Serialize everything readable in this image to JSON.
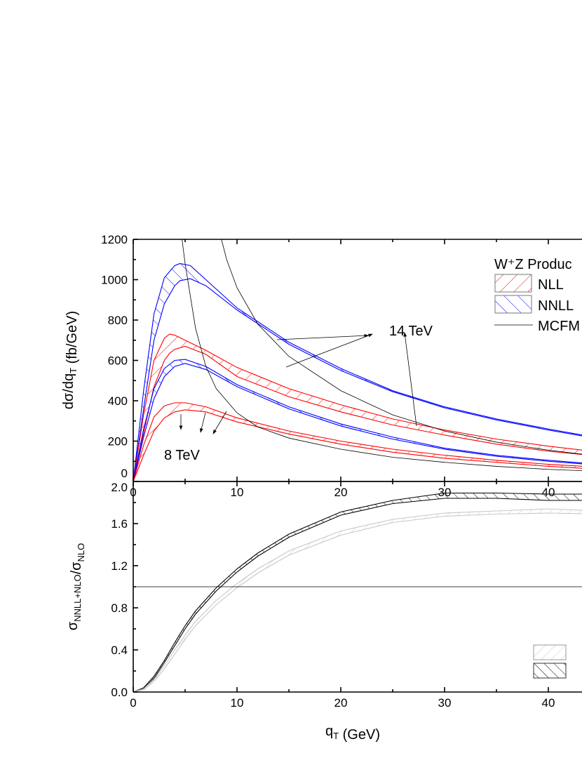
{
  "chart_data": [
    {
      "type": "line",
      "ylabel": "dσ/dq_T (fb/GeV)",
      "xlim": [
        0,
        45
      ],
      "ylim": [
        0,
        1200
      ],
      "xticks": [
        "0",
        "10",
        "20",
        "30",
        "40"
      ],
      "yticks": [
        "0",
        "200",
        "400",
        "600",
        "800",
        "1000",
        "1200"
      ],
      "legend": {
        "title": "W⁺Z Produc",
        "entries": [
          "NLL",
          "NNLL",
          "MCFM"
        ],
        "placement": "top-right"
      },
      "annotations": [
        "14 TeV",
        "8 TeV"
      ],
      "bands": [
        {
          "name": "NNLL",
          "energy": "14 TeV",
          "color": "#0000ff",
          "x": [
            0,
            1,
            2,
            3,
            4,
            4.5,
            5.5,
            7,
            10,
            15,
            20,
            25,
            30,
            35,
            40,
            45
          ],
          "upper": [
            0,
            450,
            830,
            1010,
            1070,
            1080,
            1070,
            1000,
            860,
            690,
            560,
            450,
            370,
            310,
            260,
            215
          ],
          "lower": [
            0,
            360,
            700,
            880,
            970,
            995,
            1005,
            970,
            850,
            680,
            550,
            445,
            365,
            305,
            255,
            210
          ]
        },
        {
          "name": "NLL",
          "energy": "14 TeV",
          "color": "#ff0000",
          "x": [
            0,
            1,
            2,
            3,
            3.5,
            4,
            5,
            7,
            10,
            15,
            20,
            25,
            30,
            35,
            40,
            45
          ],
          "upper": [
            0,
            330,
            600,
            710,
            730,
            725,
            700,
            650,
            565,
            460,
            380,
            310,
            255,
            210,
            175,
            145
          ],
          "lower": [
            0,
            240,
            470,
            600,
            635,
            655,
            670,
            630,
            520,
            420,
            345,
            280,
            230,
            185,
            150,
            125
          ]
        },
        {
          "name": "NNLL",
          "energy": "8 TeV",
          "color": "#0000ff",
          "x": [
            0,
            1,
            2,
            3,
            4,
            5,
            7,
            10,
            15,
            20,
            25,
            30,
            35,
            40,
            45
          ],
          "upper": [
            0,
            260,
            460,
            560,
            600,
            605,
            570,
            480,
            370,
            285,
            220,
            165,
            130,
            105,
            85
          ],
          "lower": [
            0,
            220,
            410,
            520,
            570,
            585,
            555,
            470,
            360,
            275,
            210,
            160,
            125,
            100,
            80
          ]
        },
        {
          "name": "NLL",
          "energy": "8 TeV",
          "color": "#ff0000",
          "x": [
            0,
            1,
            2,
            3,
            4,
            5,
            7,
            10,
            15,
            20,
            25,
            30,
            35,
            40,
            45
          ],
          "upper": [
            0,
            180,
            320,
            375,
            390,
            390,
            370,
            315,
            250,
            200,
            160,
            130,
            105,
            85,
            70
          ],
          "lower": [
            0,
            130,
            250,
            315,
            345,
            355,
            345,
            295,
            235,
            185,
            145,
            115,
            95,
            75,
            60
          ]
        }
      ],
      "series": [
        {
          "name": "MCFM",
          "energy": "14 TeV",
          "x": [
            8.5,
            9,
            10,
            12,
            15,
            20,
            25,
            30,
            35,
            40,
            45
          ],
          "y": [
            1200,
            1100,
            960,
            780,
            620,
            450,
            330,
            250,
            195,
            155,
            125
          ]
        },
        {
          "name": "MCFM",
          "energy": "8 TeV",
          "x": [
            4.7,
            5,
            6,
            7,
            8,
            10,
            12,
            15,
            20,
            25,
            30,
            35,
            40,
            45
          ],
          "y": [
            1200,
            1080,
            760,
            570,
            460,
            340,
            270,
            215,
            160,
            120,
            95,
            75,
            60,
            50
          ]
        }
      ]
    },
    {
      "type": "line",
      "ylabel": "σ_NNLL+NLO/σ_NLO",
      "xlabel": "q_T (GeV)",
      "xlim": [
        0,
        45
      ],
      "ylim": [
        0,
        2.0
      ],
      "xticks": [
        "0",
        "10",
        "20",
        "30",
        "40"
      ],
      "yticks": [
        "0.0",
        "0.4",
        "0.8",
        "1.2",
        "1.6",
        "2.0"
      ],
      "reference_line": 1.0,
      "bands": [
        {
          "color": "#000000",
          "x": [
            0,
            1,
            2,
            3,
            4,
            5,
            6,
            8,
            10,
            12,
            15,
            20,
            25,
            30,
            35,
            40,
            45
          ],
          "upper": [
            0,
            0.04,
            0.15,
            0.3,
            0.47,
            0.63,
            0.77,
            0.99,
            1.17,
            1.32,
            1.5,
            1.71,
            1.82,
            1.89,
            1.89,
            1.88,
            1.88
          ],
          "lower": [
            0,
            0.03,
            0.13,
            0.28,
            0.44,
            0.6,
            0.74,
            0.96,
            1.14,
            1.29,
            1.47,
            1.68,
            1.79,
            1.84,
            1.84,
            1.82,
            1.82
          ]
        },
        {
          "color": "#c8c8c8",
          "x": [
            0,
            1,
            2,
            3,
            4,
            5,
            6,
            8,
            10,
            12,
            15,
            20,
            25,
            30,
            35,
            40,
            45
          ],
          "upper": [
            0,
            0.03,
            0.12,
            0.25,
            0.4,
            0.54,
            0.67,
            0.87,
            1.03,
            1.17,
            1.34,
            1.53,
            1.64,
            1.7,
            1.72,
            1.74,
            1.72
          ],
          "lower": [
            0,
            0.02,
            0.1,
            0.22,
            0.36,
            0.5,
            0.63,
            0.83,
            0.99,
            1.13,
            1.3,
            1.49,
            1.61,
            1.67,
            1.69,
            1.7,
            1.69
          ]
        }
      ]
    }
  ]
}
